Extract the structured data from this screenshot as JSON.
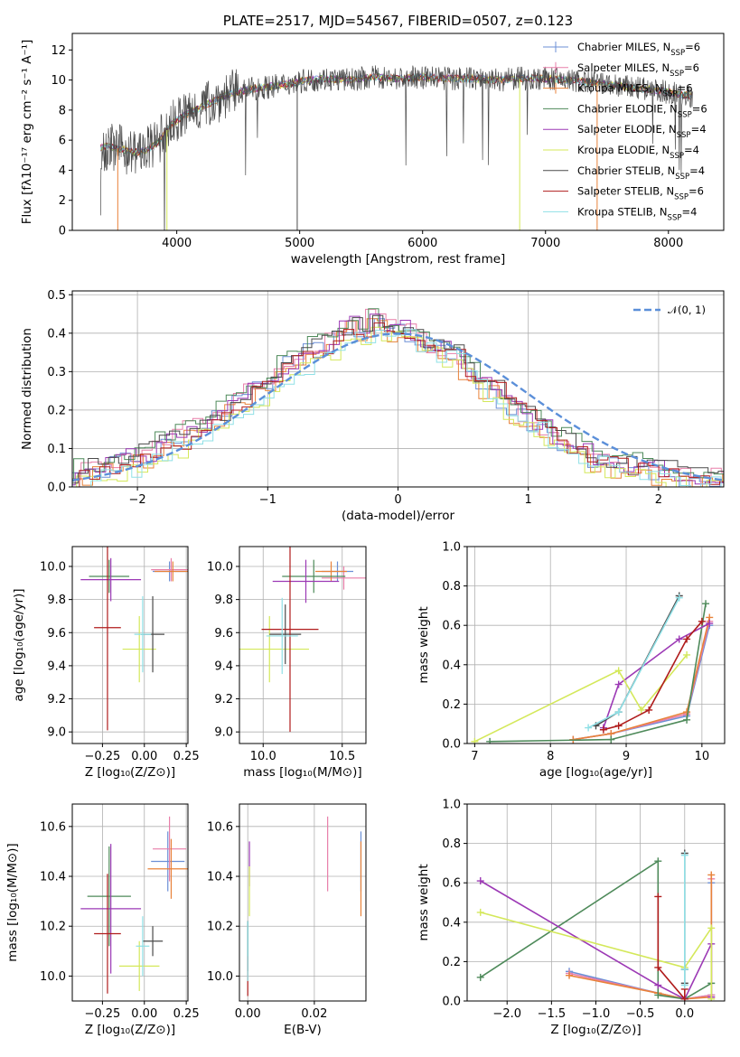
{
  "chart_data": [
    {
      "id": "spectrum",
      "type": "line",
      "title": "PLATE=2517, MJD=54567, FIBERID=0507, z=0.123",
      "xlabel": "wavelength [Angstrom, rest frame]",
      "ylabel": "Flux [fλ10⁻¹⁷ erg cm⁻² s⁻¹ A⁻¹]",
      "xlim": [
        3150,
        8450
      ],
      "ylim": [
        0,
        13.1
      ],
      "xticks": [
        4000,
        5000,
        6000,
        7000,
        8000
      ],
      "yticks": [
        0,
        2,
        4,
        6,
        8,
        10,
        12
      ],
      "grid": false,
      "legend_position": "top-right",
      "data_envelope": {
        "x": [
          3380,
          3450,
          3550,
          3650,
          3750,
          3850,
          3950,
          4050,
          4150,
          4250,
          4400,
          4600,
          4800,
          5000,
          5200,
          5400,
          5600,
          5800,
          6000,
          6200,
          6400,
          6600,
          6800,
          7000,
          7200,
          7400,
          7600,
          7800,
          8000,
          8200
        ],
        "y": [
          5.5,
          5.6,
          5.4,
          5.2,
          5.3,
          5.9,
          7.0,
          7.6,
          8.0,
          8.4,
          9.0,
          9.4,
          9.6,
          9.9,
          10.1,
          10.0,
          10.2,
          10.1,
          10.2,
          10.1,
          10.1,
          10.0,
          10.1,
          10.1,
          10.0,
          9.8,
          9.6,
          9.4,
          9.2,
          8.9
        ]
      },
      "series": [
        {
          "name": "Chabrier MILES, N<sub>SSP</sub>=6",
          "color": "#6b8fd6"
        },
        {
          "name": "Salpeter MILES, N<sub>SSP</sub>=6",
          "color": "#e87ea9"
        },
        {
          "name": "Kroupa MILES, N<sub>SSP</sub>=6",
          "color": "#e8823a"
        },
        {
          "name": "Chabrier ELODIE, N<sub>SSP</sub>=6",
          "color": "#4e8a5a"
        },
        {
          "name": "Salpeter ELODIE, N<sub>SSP</sub>=4",
          "color": "#9c39b5"
        },
        {
          "name": "Kroupa ELODIE, N<sub>SSP</sub>=4",
          "color": "#d4e85a"
        },
        {
          "name": "Chabrier STELIB, N<sub>SSP</sub>=4",
          "color": "#4a4a4a"
        },
        {
          "name": "Salpeter STELIB, N<sub>SSP</sub>=6",
          "color": "#b01c1c"
        },
        {
          "name": "Kroupa STELIB, N<sub>SSP</sub>=4",
          "color": "#8fe0e6"
        }
      ]
    },
    {
      "id": "residuals",
      "type": "line",
      "xlabel": "(data-model)/error",
      "ylabel": "Normed distribution",
      "xlim": [
        -2.5,
        2.5
      ],
      "ylim": [
        0,
        0.51
      ],
      "xticks": [
        -2,
        -1,
        0,
        1,
        2
      ],
      "yticks": [
        0.0,
        0.1,
        0.2,
        0.3,
        0.4,
        0.5
      ],
      "grid": true,
      "legend_position": "top-right",
      "legend": "𝒩(0, 1)",
      "gaussian": {
        "mean": 0,
        "sigma": 1,
        "color": "#5b8fd9"
      },
      "hist_bin_width": 0.1,
      "hist_profile": [
        0.02,
        0.03,
        0.035,
        0.04,
        0.05,
        0.06,
        0.065,
        0.075,
        0.08,
        0.1,
        0.11,
        0.12,
        0.14,
        0.15,
        0.16,
        0.18,
        0.2,
        0.22,
        0.24,
        0.25,
        0.27,
        0.3,
        0.32,
        0.33,
        0.35,
        0.36,
        0.37,
        0.4,
        0.42,
        0.41,
        0.43,
        0.42,
        0.41,
        0.4,
        0.39,
        0.37,
        0.36,
        0.35,
        0.34,
        0.31,
        0.28,
        0.26,
        0.25,
        0.22,
        0.2,
        0.18,
        0.16,
        0.14,
        0.12,
        0.11,
        0.1,
        0.08,
        0.07,
        0.06,
        0.055,
        0.05,
        0.045,
        0.04,
        0.035,
        0.03,
        0.025,
        0.02,
        0.015,
        0.02,
        0.02,
        0.02,
        0.015,
        0.015,
        0.01,
        0.01
      ],
      "hist_offsets": [
        0.0,
        0.01,
        -0.01,
        0.02,
        0.01,
        -0.02,
        0.015,
        0.0,
        -0.015
      ]
    },
    {
      "id": "Z_age",
      "type": "scatter",
      "xlabel": "Z [log₁₀(Z/Z⊙)]",
      "ylabel": "age  [log₁₀(age/yr)]",
      "xlim": [
        -0.43,
        0.26
      ],
      "ylim": [
        8.93,
        10.12
      ],
      "xticks": [
        -0.25,
        0.0,
        0.25
      ],
      "xticklabels": [
        "−0.25",
        "0.00",
        "0.25"
      ],
      "yticks": [
        9.0,
        9.2,
        9.4,
        9.6,
        9.8,
        10.0
      ],
      "grid": true,
      "points": [
        {
          "color": "#6b8fd6",
          "x": 0.15,
          "y": 9.97,
          "xerr": 0.1,
          "yerr": 0.06
        },
        {
          "color": "#e87ea9",
          "x": 0.16,
          "y": 9.98,
          "xerr": 0.12,
          "yerr": 0.07
        },
        {
          "color": "#e8823a",
          "x": 0.17,
          "y": 9.97,
          "xerr": 0.11,
          "yerr": 0.06
        },
        {
          "color": "#4e8a5a",
          "x": -0.21,
          "y": 9.94,
          "xerr": 0.12,
          "yerr": 0.1
        },
        {
          "color": "#9c39b5",
          "x": -0.2,
          "y": 9.92,
          "xerr": 0.18,
          "yerr": 0.13
        },
        {
          "color": "#d4e85a",
          "x": -0.03,
          "y": 9.5,
          "xerr": 0.1,
          "yerr": 0.2
        },
        {
          "color": "#4a4a4a",
          "x": 0.05,
          "y": 9.59,
          "xerr": 0.07,
          "yerr": 0.23
        },
        {
          "color": "#b01c1c",
          "x": -0.22,
          "y": 9.63,
          "xerr": 0.08,
          "yerr": 0.62
        },
        {
          "color": "#8fe0e6",
          "x": -0.01,
          "y": 9.59,
          "xerr": 0.05,
          "yerr": 0.23
        }
      ]
    },
    {
      "id": "mass_age",
      "type": "scatter",
      "xlabel": "mass [log₁₀(M/M⊙)]",
      "ylabel": "",
      "xlim": [
        9.85,
        10.65
      ],
      "ylim": [
        8.93,
        10.12
      ],
      "xticks": [
        10.0,
        10.5
      ],
      "yticks": [
        9.0,
        9.2,
        9.4,
        9.6,
        9.8,
        10.0
      ],
      "grid": true,
      "points": [
        {
          "color": "#6b8fd6",
          "x": 10.47,
          "y": 9.97,
          "xerr": 0.1,
          "yerr": 0.06
        },
        {
          "color": "#e87ea9",
          "x": 10.51,
          "y": 9.93,
          "xerr": 0.14,
          "yerr": 0.07
        },
        {
          "color": "#e8823a",
          "x": 10.43,
          "y": 9.97,
          "xerr": 0.1,
          "yerr": 0.06
        },
        {
          "color": "#4e8a5a",
          "x": 10.32,
          "y": 9.94,
          "xerr": 0.2,
          "yerr": 0.1
        },
        {
          "color": "#9c39b5",
          "x": 10.27,
          "y": 9.91,
          "xerr": 0.21,
          "yerr": 0.13
        },
        {
          "color": "#d4e85a",
          "x": 10.04,
          "y": 9.5,
          "xerr": 0.25,
          "yerr": 0.2
        },
        {
          "color": "#4a4a4a",
          "x": 10.14,
          "y": 9.59,
          "xerr": 0.1,
          "yerr": 0.18
        },
        {
          "color": "#b01c1c",
          "x": 10.17,
          "y": 9.62,
          "xerr": 0.18,
          "yerr": 0.62
        },
        {
          "color": "#8fe0e6",
          "x": 10.12,
          "y": 9.58,
          "xerr": 0.1,
          "yerr": 0.23
        }
      ]
    },
    {
      "id": "age_weight",
      "type": "line",
      "xlabel": "age  [log₁₀(age/yr)]",
      "ylabel": "mass weight",
      "xlim": [
        6.9,
        10.3
      ],
      "ylim": [
        0,
        1.0
      ],
      "xticks": [
        7,
        8,
        9,
        10
      ],
      "yticks": [
        0.0,
        0.2,
        0.4,
        0.6,
        0.8,
        1.0
      ],
      "grid": true,
      "series": [
        {
          "color": "#6b8fd6",
          "x": [
            8.3,
            8.8,
            9.8,
            10.1
          ],
          "y": [
            0.02,
            0.05,
            0.14,
            0.6
          ]
        },
        {
          "color": "#e87ea9",
          "x": [
            8.3,
            8.8,
            9.8,
            10.1
          ],
          "y": [
            0.02,
            0.05,
            0.15,
            0.62
          ]
        },
        {
          "color": "#e8823a",
          "x": [
            8.3,
            8.8,
            9.8,
            10.1
          ],
          "y": [
            0.02,
            0.05,
            0.16,
            0.64
          ]
        },
        {
          "color": "#4e8a5a",
          "x": [
            7.2,
            8.8,
            9.8,
            10.05
          ],
          "y": [
            0.01,
            0.02,
            0.12,
            0.71
          ]
        },
        {
          "color": "#9c39b5",
          "x": [
            8.7,
            8.9,
            9.7,
            10.1
          ],
          "y": [
            0.08,
            0.3,
            0.53,
            0.61
          ]
        },
        {
          "color": "#d4e85a",
          "x": [
            7.0,
            8.9,
            9.2,
            9.8
          ],
          "y": [
            0.01,
            0.37,
            0.17,
            0.45
          ]
        },
        {
          "color": "#4a4a4a",
          "x": [
            8.6,
            8.9,
            9.7
          ],
          "y": [
            0.09,
            0.16,
            0.75
          ]
        },
        {
          "color": "#b01c1c",
          "x": [
            8.7,
            8.9,
            9.3,
            9.8,
            10.0
          ],
          "y": [
            0.07,
            0.09,
            0.17,
            0.53,
            0.62
          ]
        },
        {
          "color": "#8fe0e6",
          "x": [
            8.5,
            8.9,
            9.7
          ],
          "y": [
            0.08,
            0.16,
            0.74
          ]
        }
      ]
    },
    {
      "id": "Z_mass",
      "type": "scatter",
      "xlabel": "Z [log₁₀(Z/Z⊙)]",
      "ylabel": "mass [log₁₀(M/M⊙)]",
      "xlim": [
        -0.43,
        0.26
      ],
      "ylim": [
        9.9,
        10.69
      ],
      "xticks": [
        -0.25,
        0.0,
        0.25
      ],
      "xticklabels": [
        "−0.25",
        "0.00",
        "0.25"
      ],
      "yticks": [
        10.0,
        10.2,
        10.4,
        10.6
      ],
      "grid": true,
      "points": [
        {
          "color": "#6b8fd6",
          "x": 0.14,
          "y": 10.46,
          "xerr": 0.1,
          "yerr": 0.12
        },
        {
          "color": "#e87ea9",
          "x": 0.15,
          "y": 10.51,
          "xerr": 0.1,
          "yerr": 0.13
        },
        {
          "color": "#e8823a",
          "x": 0.16,
          "y": 10.43,
          "xerr": 0.14,
          "yerr": 0.12
        },
        {
          "color": "#4e8a5a",
          "x": -0.21,
          "y": 10.32,
          "xerr": 0.13,
          "yerr": 0.2
        },
        {
          "color": "#9c39b5",
          "x": -0.2,
          "y": 10.27,
          "xerr": 0.18,
          "yerr": 0.26
        },
        {
          "color": "#d4e85a",
          "x": -0.03,
          "y": 10.04,
          "xerr": 0.12,
          "yerr": 0.1
        },
        {
          "color": "#4a4a4a",
          "x": 0.05,
          "y": 10.14,
          "xerr": 0.06,
          "yerr": 0.06
        },
        {
          "color": "#b01c1c",
          "x": -0.22,
          "y": 10.17,
          "xerr": 0.08,
          "yerr": 0.24
        },
        {
          "color": "#8fe0e6",
          "x": -0.01,
          "y": 10.12,
          "xerr": 0.04,
          "yerr": 0.12
        }
      ]
    },
    {
      "id": "ebv_mass",
      "type": "scatter",
      "xlabel": "E(B-V)",
      "ylabel": "",
      "xlim": [
        -0.0025,
        0.0355
      ],
      "ylim": [
        9.9,
        10.69
      ],
      "xticks": [
        0.0,
        0.02
      ],
      "xticklabels": [
        "0.00",
        "0.02"
      ],
      "yticks": [
        10.0,
        10.2,
        10.4,
        10.6
      ],
      "grid": true,
      "points": [
        {
          "color": "#6b8fd6",
          "x": 0.034,
          "y": 10.46,
          "xerr": 0,
          "yerr": 0.12
        },
        {
          "color": "#e87ea9",
          "x": 0.024,
          "y": 10.49,
          "xerr": 0,
          "yerr": 0.15
        },
        {
          "color": "#e8823a",
          "x": 0.034,
          "y": 10.39,
          "xerr": 0,
          "yerr": 0.15
        },
        {
          "color": "#4e8a5a",
          "x": 0.0,
          "y": 10.12,
          "xerr": 0,
          "yerr": 0.1
        },
        {
          "color": "#9c39b5",
          "x": 0.0005,
          "y": 10.45,
          "xerr": 0,
          "yerr": 0.09
        },
        {
          "color": "#d4e85a",
          "x": 0.0005,
          "y": 10.34,
          "xerr": 0,
          "yerr": 0.1
        },
        {
          "color": "#4a4a4a",
          "x": 0.0,
          "y": 10.12,
          "xerr": 0,
          "yerr": 0.1
        },
        {
          "color": "#b01c1c",
          "x": 0.0,
          "y": 10.0,
          "xerr": 0,
          "yerr": 0.08
        },
        {
          "color": "#8fe0e6",
          "x": 0.0,
          "y": 10.1,
          "xerr": 0,
          "yerr": 0.12
        }
      ]
    },
    {
      "id": "Z_weight",
      "type": "line",
      "xlabel": "Z [log₁₀(Z/Z⊙)]",
      "ylabel": "mass weight",
      "xlim": [
        -2.45,
        0.45
      ],
      "ylim": [
        0,
        1.0
      ],
      "xticks": [
        -2.0,
        -1.5,
        -1.0,
        -0.5,
        0.0
      ],
      "xticklabels": [
        "−2.0",
        "−1.5",
        "−1.0",
        "−0.5",
        "0.0"
      ],
      "yticks": [
        0.0,
        0.2,
        0.4,
        0.6,
        0.8,
        1.0
      ],
      "grid": true,
      "series": [
        {
          "color": "#6b8fd6",
          "x": [
            -1.3,
            -0.3,
            0.0,
            0.3,
            0.3
          ],
          "y": [
            0.15,
            0.04,
            0.01,
            0.03,
            0.6
          ]
        },
        {
          "color": "#e87ea9",
          "x": [
            -1.3,
            -0.3,
            0.0,
            0.3,
            0.3
          ],
          "y": [
            0.14,
            0.04,
            0.01,
            0.03,
            0.62
          ]
        },
        {
          "color": "#e8823a",
          "x": [
            -1.3,
            -0.3,
            0.0,
            0.3,
            0.3
          ],
          "y": [
            0.13,
            0.04,
            0.01,
            0.02,
            0.64
          ]
        },
        {
          "color": "#4e8a5a",
          "x": [
            -2.3,
            -0.3,
            -0.3,
            0.0,
            0.3
          ],
          "y": [
            0.12,
            0.71,
            0.03,
            0.01,
            0.09
          ]
        },
        {
          "color": "#9c39b5",
          "x": [
            -2.3,
            -0.3,
            0.0,
            0.3,
            0.3
          ],
          "y": [
            0.61,
            0.08,
            0.01,
            0.29,
            0.02
          ]
        },
        {
          "color": "#d4e85a",
          "x": [
            -2.3,
            0.0,
            0.3,
            0.3
          ],
          "y": [
            0.45,
            0.17,
            0.37,
            0.01
          ]
        },
        {
          "color": "#4a4a4a",
          "x": [
            0.0,
            0.0,
            0.0
          ],
          "y": [
            0.75,
            0.16,
            0.09
          ]
        },
        {
          "color": "#b01c1c",
          "x": [
            -0.3,
            -0.3,
            0.0,
            0.0
          ],
          "y": [
            0.53,
            0.17,
            0.01,
            0.06
          ]
        },
        {
          "color": "#8fe0e6",
          "x": [
            0.0,
            0.0,
            0.0
          ],
          "y": [
            0.74,
            0.16,
            0.08
          ]
        }
      ]
    }
  ]
}
